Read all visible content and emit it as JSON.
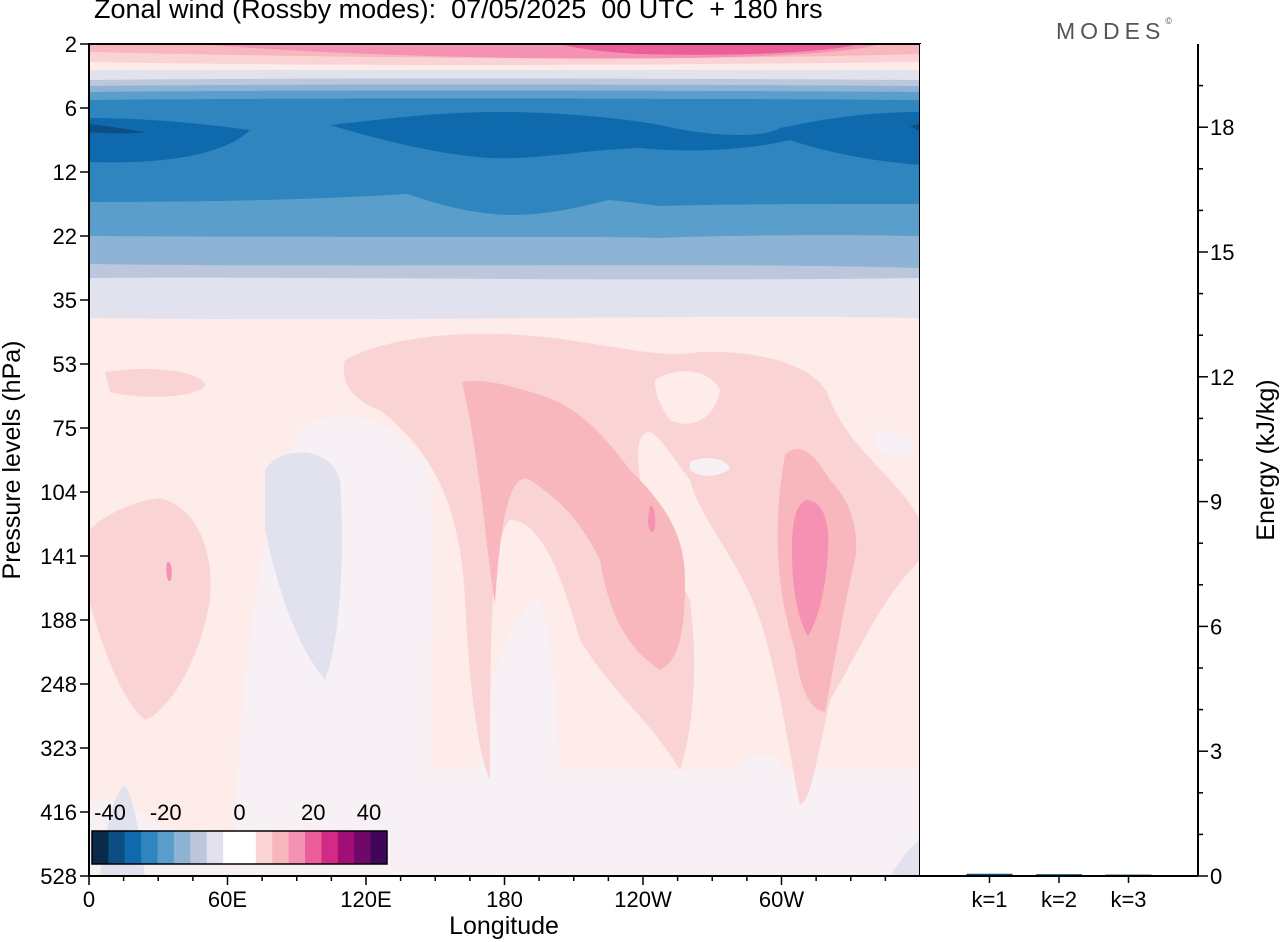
{
  "header": {
    "title": "Zonal wind (Rossby modes):  07/05/2025  00 UTC  + 180 hrs",
    "brand": "MODES",
    "brand_mark": "©"
  },
  "colors": {
    "scale": [
      "#0a2a4a",
      "#0b4f82",
      "#0e6aad",
      "#2f86bf",
      "#5a9fcb",
      "#8eb3d4",
      "#bcc7dd",
      "#e1e2ee",
      "#f7f0f5",
      "#feecea",
      "#fad4d5",
      "#f8b6bd",
      "#f591b2",
      "#ec5e99",
      "#d22a86",
      "#a10f76",
      "#6f0868",
      "#40065a"
    ],
    "white": "#ffffff",
    "axis": "#000000"
  },
  "chart_data": [
    {
      "type": "heatmap",
      "title": "Zonal wind (Rossby modes):  07/05/2025  00 UTC  + 180 hrs",
      "xlabel": "Longitude",
      "ylabel": "Pressure levels (hPa)",
      "x_ticks": [
        "0",
        "60E",
        "120E",
        "180",
        "120W",
        "60W"
      ],
      "x_range": [
        0,
        360
      ],
      "y_ticks": [
        "2",
        "6",
        "12",
        "22",
        "35",
        "53",
        "75",
        "104",
        "141",
        "188",
        "248",
        "323",
        "416",
        "528"
      ],
      "colorbar": {
        "ticks": [
          "-40",
          "-20",
          "0",
          "20",
          "40"
        ],
        "range": [
          -40,
          40
        ],
        "step": 5
      },
      "features": [
        {
          "region": "top, 2 hPa",
          "value": 20
        },
        {
          "region": "stratosphere, 6-12 hPa",
          "value": -30
        },
        {
          "region": "stratosphere, 22 hPa",
          "value": -15
        },
        {
          "region": "troposphere, 120W-60W, 104-141 hPa",
          "value": 15
        },
        {
          "region": "troposphere, 180-120W, 75-141 hPa",
          "value": 10
        },
        {
          "region": "troposphere, 90E, 104-188 hPa",
          "value": -2
        }
      ]
    },
    {
      "type": "bar",
      "ylabel": "Energy (kJ/kg)",
      "categories": [
        "k=1",
        "k=2",
        "k=3"
      ],
      "values": [
        0.03,
        0.02,
        0.01
      ],
      "ylim": [
        0,
        20
      ],
      "y_ticks": [
        "0",
        "3",
        "6",
        "9",
        "12",
        "15",
        "18"
      ]
    }
  ]
}
